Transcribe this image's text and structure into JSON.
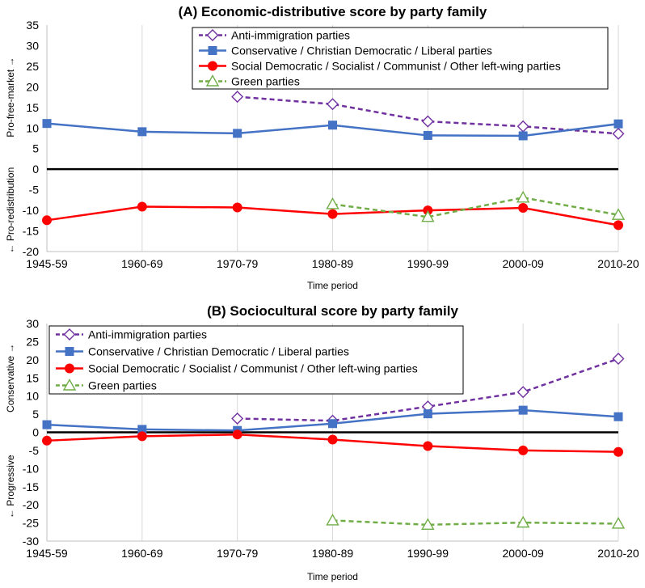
{
  "chart_data": [
    {
      "type": "line",
      "title": "(A)  Economic-distributive score by party family",
      "xlabel": "Time period",
      "ylabel_top": "Pro-free-market →",
      "ylabel_bottom": "← Pro-redistribution",
      "categories": [
        "1945-59",
        "1960-69",
        "1970-79",
        "1980-89",
        "1990-99",
        "2000-09",
        "2010-20"
      ],
      "ylim": [
        -20,
        35
      ],
      "yticks": [
        -20,
        -15,
        -10,
        -5,
        0,
        5,
        10,
        15,
        20,
        25,
        30,
        35
      ],
      "grid": "vertical",
      "legend_position": "top-right",
      "zero_line": true,
      "series": [
        {
          "name": "Anti-immigration parties",
          "color": "#7030a0",
          "dash": "dashed",
          "marker": "diamond-open",
          "values": [
            null,
            null,
            17.6,
            15.8,
            11.6,
            10.4,
            8.6
          ]
        },
        {
          "name": "Conservative / Christian Democratic / Liberal parties",
          "color": "#4472c4",
          "dash": "solid",
          "marker": "square",
          "values": [
            11.1,
            9.1,
            8.7,
            10.7,
            8.2,
            8.1,
            11.0
          ]
        },
        {
          "name": "Social Democratic / Socialist / Communist / Other left-wing parties",
          "color": "#ff0000",
          "dash": "solid",
          "marker": "circle",
          "values": [
            -12.4,
            -9.1,
            -9.3,
            -10.9,
            -10.0,
            -9.4,
            -13.6
          ]
        },
        {
          "name": "Green parties",
          "color": "#70ad47",
          "dash": "dashed",
          "marker": "triangle-open",
          "values": [
            null,
            null,
            null,
            -8.5,
            -11.6,
            -6.9,
            -11.1
          ]
        }
      ]
    },
    {
      "type": "line",
      "title": "(B)  Sociocultural score by party family",
      "xlabel": "Time period",
      "ylabel_top": "Conservative →",
      "ylabel_bottom": "← Progressive",
      "categories": [
        "1945-59",
        "1960-69",
        "1970-79",
        "1980-89",
        "1990-99",
        "2000-09",
        "2010-20"
      ],
      "ylim": [
        -30,
        30
      ],
      "yticks": [
        -30,
        -25,
        -20,
        -15,
        -10,
        -5,
        0,
        5,
        10,
        15,
        20,
        25,
        30
      ],
      "grid": "vertical",
      "legend_position": "top-left",
      "zero_line": true,
      "series": [
        {
          "name": "Anti-immigration parties",
          "color": "#7030a0",
          "dash": "dashed",
          "marker": "diamond-open",
          "values": [
            null,
            null,
            3.8,
            3.2,
            7.1,
            11.1,
            20.3
          ]
        },
        {
          "name": "Conservative / Christian Democratic / Liberal parties",
          "color": "#4472c4",
          "dash": "solid",
          "marker": "square",
          "values": [
            2.1,
            0.8,
            0.5,
            2.4,
            5.1,
            6.1,
            4.3
          ]
        },
        {
          "name": "Social Democratic / Socialist / Communist / Other left-wing parties",
          "color": "#ff0000",
          "dash": "solid",
          "marker": "circle",
          "values": [
            -2.3,
            -1.1,
            -0.6,
            -2.0,
            -3.8,
            -5.0,
            -5.4
          ]
        },
        {
          "name": "Green parties",
          "color": "#70ad47",
          "dash": "dashed",
          "marker": "triangle-open",
          "values": [
            null,
            null,
            null,
            -24.3,
            -25.5,
            -24.9,
            -25.2
          ]
        }
      ]
    }
  ]
}
